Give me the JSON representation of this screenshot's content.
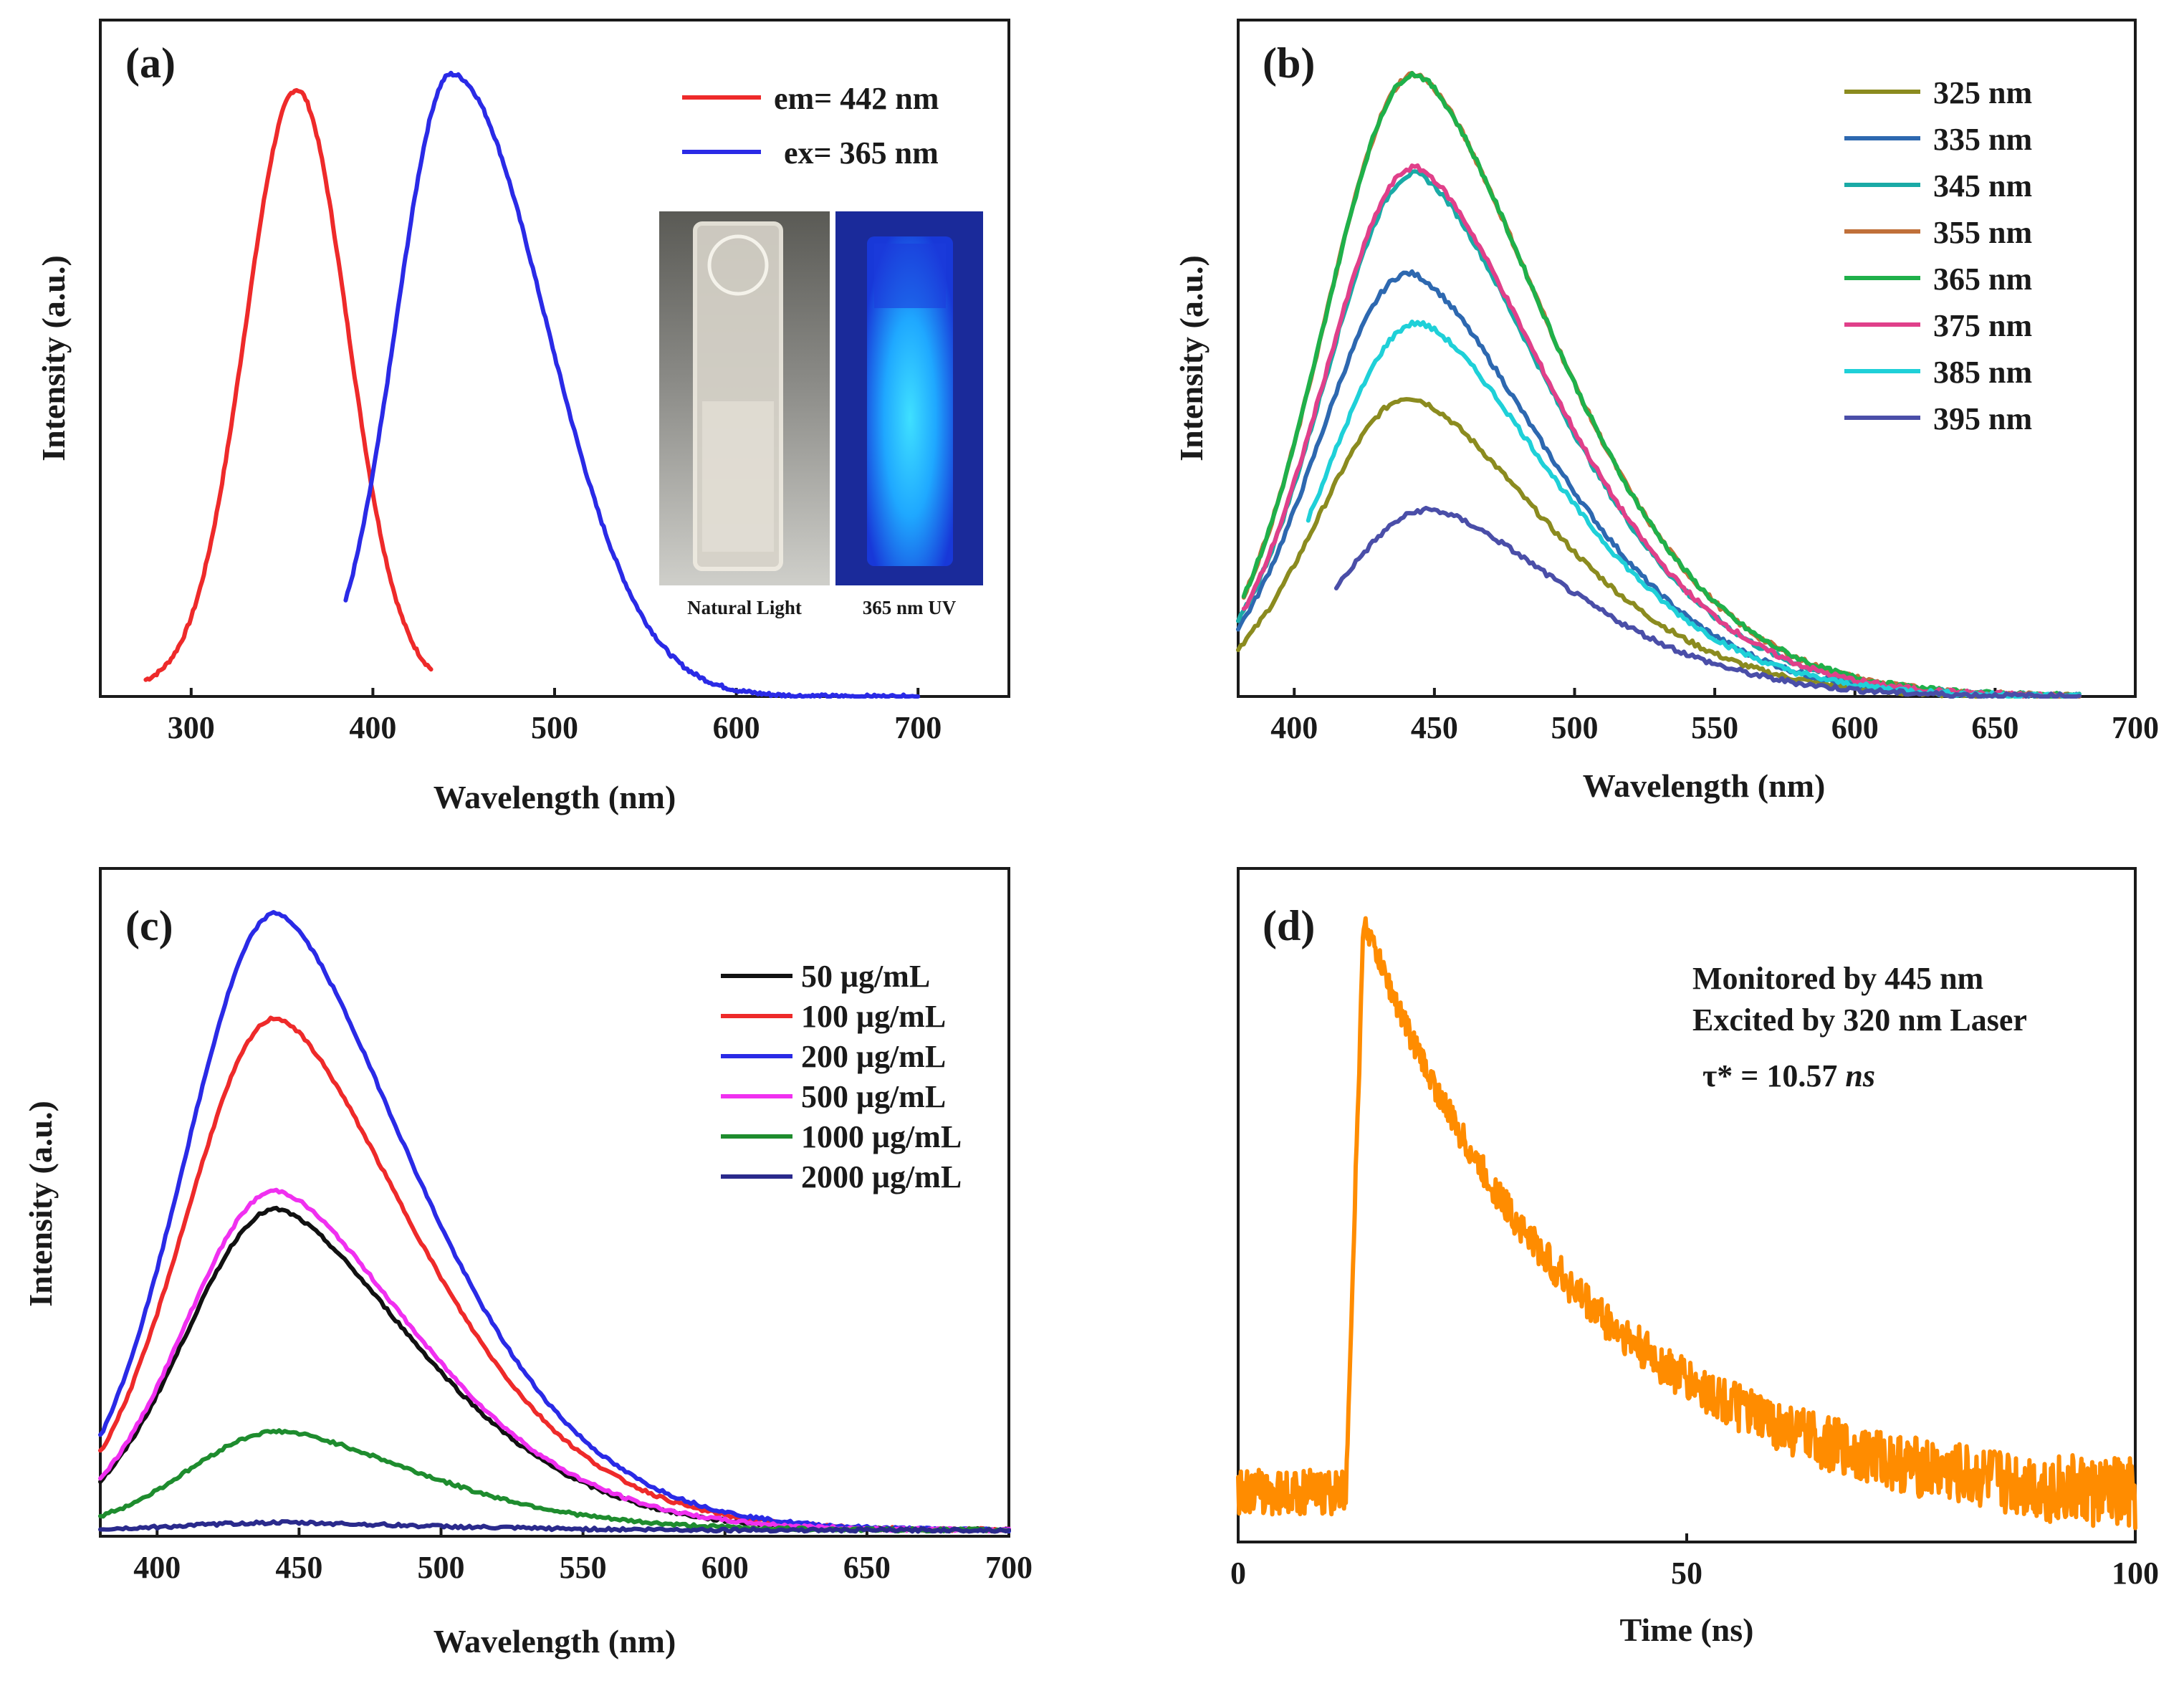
{
  "colors": {
    "em": "#ee2a2a",
    "ex": "#2a2ae6",
    "nm325": "#8b8b1f",
    "nm335": "#2d68b0",
    "nm345": "#1aaaa6",
    "nm355": "#c0703a",
    "nm365": "#1fb04a",
    "nm375": "#e0408a",
    "nm385": "#1fd0d8",
    "nm395": "#4a4ea8",
    "c50": "#111111",
    "c100": "#ee2a2a",
    "c200": "#2a2ae6",
    "c500": "#f030f0",
    "c1000": "#1e8c2e",
    "c2000": "#2a2a8c",
    "decay": "#ff8c00"
  },
  "chart_data": [
    {
      "panel": "(a)",
      "type": "line",
      "xlabel": "Wavelength (nm)",
      "ylabel": "Intensity (a.u.)",
      "xlim": [
        250,
        750
      ],
      "xticks": [
        "300",
        "400",
        "500",
        "600",
        "700"
      ],
      "ylim": [
        0,
        1.05
      ],
      "series": [
        {
          "name": "em= 442 nm",
          "color_key": "em",
          "peak": 358,
          "width_left": 28,
          "width_right": 28,
          "amp": 0.96,
          "start": 275,
          "end": 432
        },
        {
          "name": "ex= 365 nm",
          "color_key": "ex",
          "peak": 443,
          "width_left": 30,
          "width_right": 52,
          "amp": 1.0,
          "start": 385,
          "end": 700
        }
      ],
      "inset": {
        "left_caption": "Natural Light",
        "right_caption": "365 nm UV"
      }
    },
    {
      "panel": "(b)",
      "type": "line",
      "xlabel": "Wavelength (nm)",
      "ylabel": "Intensity (a.u.)",
      "xlim": [
        380,
        700
      ],
      "xticks": [
        "400",
        "450",
        "500",
        "550",
        "600",
        "650",
        "700"
      ],
      "ylim": [
        0,
        1.05
      ],
      "series": [
        {
          "name": "325 nm",
          "color_key": "nm325",
          "peak": 441,
          "amp": 0.48,
          "start": 380
        },
        {
          "name": "335 nm",
          "color_key": "nm335",
          "peak": 441,
          "amp": 0.68,
          "start": 380
        },
        {
          "name": "345 nm",
          "color_key": "nm345",
          "peak": 443,
          "amp": 0.84,
          "start": 380
        },
        {
          "name": "355 nm",
          "color_key": "nm355",
          "peak": 443,
          "amp": 1.0,
          "start": 382
        },
        {
          "name": "365 nm",
          "color_key": "nm365",
          "peak": 443,
          "amp": 1.0,
          "start": 382
        },
        {
          "name": "375 nm",
          "color_key": "nm375",
          "peak": 443,
          "amp": 0.85,
          "start": 382
        },
        {
          "name": "385 nm",
          "color_key": "nm385",
          "peak": 444,
          "amp": 0.6,
          "start": 405
        },
        {
          "name": "395 nm",
          "color_key": "nm395",
          "peak": 448,
          "amp": 0.3,
          "start": 415
        }
      ]
    },
    {
      "panel": "(c)",
      "type": "line",
      "xlabel": "Wavelength (nm)",
      "ylabel": "Intensity (a.u.)",
      "xlim": [
        380,
        700
      ],
      "xticks": [
        "400",
        "450",
        "500",
        "550",
        "600",
        "650",
        "700"
      ],
      "ylim": [
        0,
        1.05
      ],
      "series": [
        {
          "name": "50 μg/mL",
          "color_key": "c50",
          "peak": 442,
          "amp": 0.52
        },
        {
          "name": "100 μg/mL",
          "color_key": "c100",
          "peak": 442,
          "amp": 0.83
        },
        {
          "name": "200 μg/mL",
          "color_key": "c200",
          "peak": 442,
          "amp": 1.0
        },
        {
          "name": "500 μg/mL",
          "color_key": "c500",
          "peak": 442,
          "amp": 0.55
        },
        {
          "name": "1000 μg/mL",
          "color_key": "c1000",
          "peak": 443,
          "amp": 0.16
        },
        {
          "name": "2000 μg/mL",
          "color_key": "c2000",
          "peak": 443,
          "amp": 0.012
        }
      ]
    },
    {
      "panel": "(d)",
      "type": "line",
      "xlabel": "Time (ns)",
      "xlim": [
        0,
        100
      ],
      "xticks": [
        "0",
        "50",
        "100"
      ],
      "ylim": [
        0,
        1.05
      ],
      "series": [
        {
          "name": "decay",
          "color_key": "decay",
          "rise_at": 12,
          "peak_at": 14,
          "tau": 24.0,
          "baseline": 0.08,
          "noise": 0.03
        }
      ],
      "annotations": [
        "Monitored by 445 nm",
        "Excited by 320 nm Laser",
        "τ* = 10.57 ",
        "ns"
      ]
    }
  ]
}
